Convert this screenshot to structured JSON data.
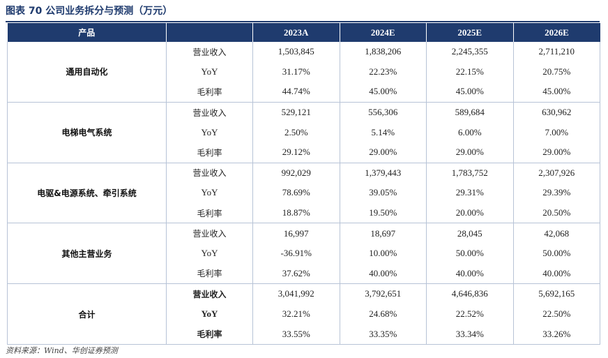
{
  "title": "图表 70 公司业务拆分与预测（万元）",
  "header": {
    "product": "产品",
    "years": [
      "2023A",
      "2024E",
      "2025E",
      "2026E"
    ]
  },
  "segments": [
    {
      "name": "通用自动化",
      "rows": [
        {
          "metric": "营业收入",
          "values": [
            "1,503,845",
            "1,838,206",
            "2,245,355",
            "2,711,210"
          ]
        },
        {
          "metric": "YoY",
          "values": [
            "31.17%",
            "22.23%",
            "22.15%",
            "20.75%"
          ]
        },
        {
          "metric": "毛利率",
          "values": [
            "44.74%",
            "45.00%",
            "45.00%",
            "45.00%"
          ]
        }
      ]
    },
    {
      "name": "电梯电气系统",
      "rows": [
        {
          "metric": "营业收入",
          "values": [
            "529,121",
            "556,306",
            "589,684",
            "630,962"
          ]
        },
        {
          "metric": "YoY",
          "values": [
            "2.50%",
            "5.14%",
            "6.00%",
            "7.00%"
          ]
        },
        {
          "metric": "毛利率",
          "values": [
            "29.12%",
            "29.00%",
            "29.00%",
            "29.00%"
          ]
        }
      ]
    },
    {
      "name": "电驱&电源系统、牵引系统",
      "rows": [
        {
          "metric": "营业收入",
          "values": [
            "992,029",
            "1,379,443",
            "1,783,752",
            "2,307,926"
          ]
        },
        {
          "metric": "YoY",
          "values": [
            "78.69%",
            "39.05%",
            "29.31%",
            "29.39%"
          ]
        },
        {
          "metric": "毛利率",
          "values": [
            "18.87%",
            "19.50%",
            "20.00%",
            "20.50%"
          ]
        }
      ]
    },
    {
      "name": "其他主营业务",
      "rows": [
        {
          "metric": "营业收入",
          "values": [
            "16,997",
            "18,697",
            "28,045",
            "42,068"
          ]
        },
        {
          "metric": "YoY",
          "values": [
            "-36.91%",
            "10.00%",
            "50.00%",
            "50.00%"
          ]
        },
        {
          "metric": "毛利率",
          "values": [
            "37.62%",
            "40.00%",
            "40.00%",
            "40.00%"
          ]
        }
      ]
    },
    {
      "name": "合计",
      "rows": [
        {
          "metric": "营业收入",
          "values": [
            "3,041,992",
            "3,792,651",
            "4,646,836",
            "5,692,165"
          ]
        },
        {
          "metric": "YoY",
          "values": [
            "32.21%",
            "24.68%",
            "22.52%",
            "22.50%"
          ]
        },
        {
          "metric": "毛利率",
          "values": [
            "33.55%",
            "33.35%",
            "33.34%",
            "33.26%"
          ]
        }
      ]
    }
  ],
  "source": "资料来源：Wind、华创证券预测",
  "colors": {
    "header_bg": "#1f3b6e",
    "border": "#b7c3d6",
    "text": "#222222"
  }
}
